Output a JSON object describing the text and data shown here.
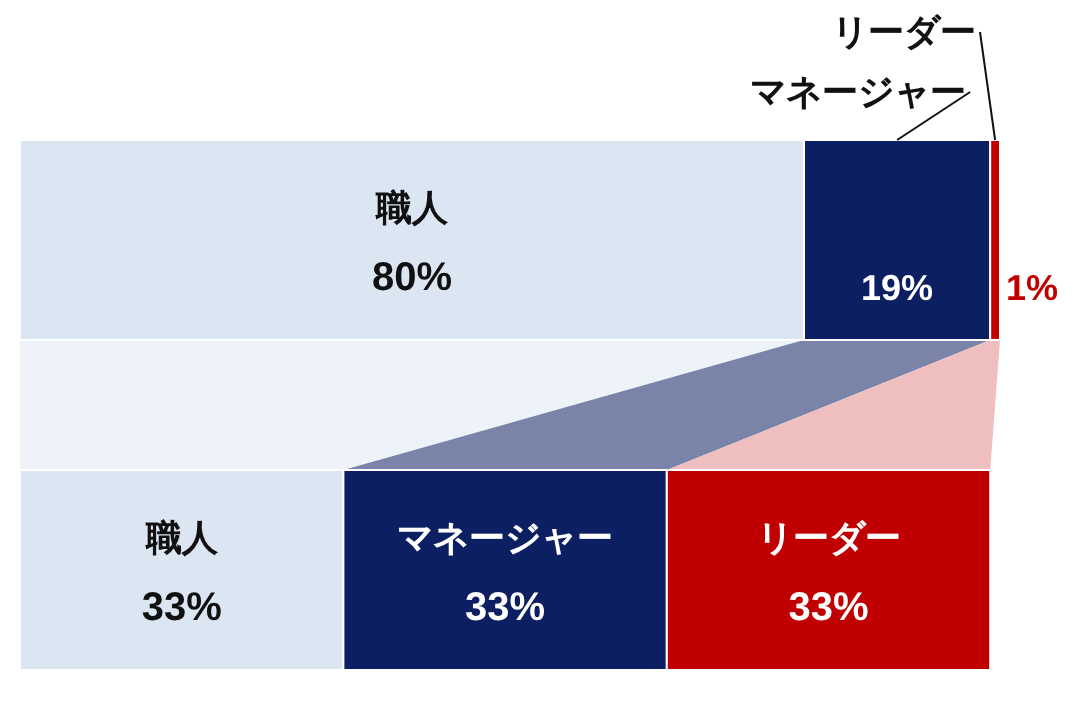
{
  "chart_data": {
    "type": "bar",
    "orientation": "horizontal",
    "stacked": true,
    "legend": false,
    "tick_labels": false,
    "xlim": [
      0,
      100
    ],
    "categories": [
      null,
      null
    ],
    "series": [
      {
        "name": "職人",
        "color": "#dce6f2",
        "values": [
          80,
          33
        ],
        "value_labels": [
          "80%",
          "33%"
        ]
      },
      {
        "name": "マネージャー",
        "color": "#0d1f63",
        "values": [
          19,
          33
        ],
        "value_labels": [
          "19%",
          "33%"
        ]
      },
      {
        "name": "リーダー",
        "color": "#c00000",
        "values": [
          1,
          33
        ],
        "value_labels": [
          "1%",
          "33%"
        ]
      }
    ]
  }
}
